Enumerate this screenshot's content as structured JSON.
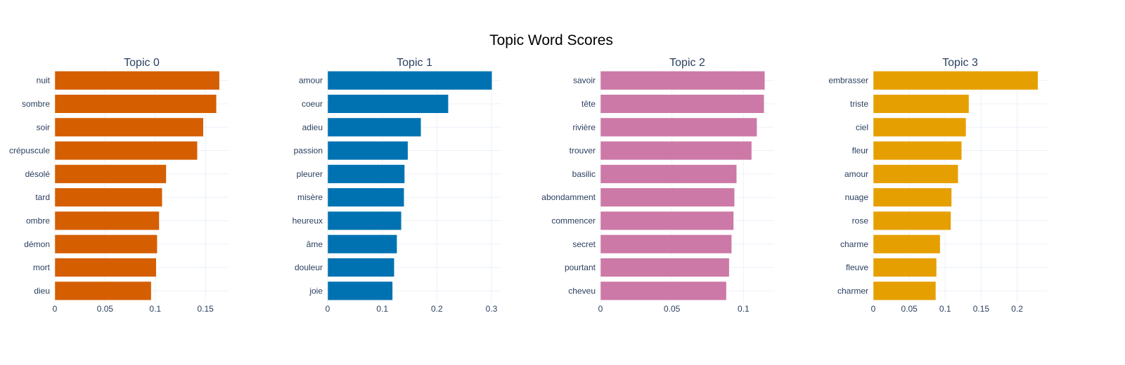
{
  "chart_data": {
    "type": "bar",
    "orientation": "horizontal",
    "title": "Topic Word Scores",
    "grid": true,
    "legend": "none",
    "panels": [
      {
        "title": "Topic 0",
        "color": "#D55E00",
        "categories": [
          "nuit",
          "sombre",
          "soir",
          "crépuscule",
          "désolé",
          "tard",
          "ombre",
          "démon",
          "mort",
          "dieu"
        ],
        "values": [
          0.164,
          0.161,
          0.148,
          0.142,
          0.111,
          0.107,
          0.104,
          0.102,
          0.101,
          0.096
        ],
        "xlim": [
          0,
          0.173
        ],
        "xticks": [
          0,
          0.05,
          0.1,
          0.15
        ],
        "xtick_labels": [
          "0",
          "0.05",
          "0.1",
          "0.15"
        ]
      },
      {
        "title": "Topic 1",
        "color": "#0072B2",
        "categories": [
          "amour",
          "coeur",
          "adieu",
          "passion",
          "pleurer",
          "misère",
          "heureux",
          "âme",
          "douleur",
          "joie"
        ],
        "values": [
          0.301,
          0.221,
          0.171,
          0.147,
          0.141,
          0.14,
          0.135,
          0.127,
          0.122,
          0.119
        ],
        "xlim": [
          0,
          0.318
        ],
        "xticks": [
          0,
          0.1,
          0.2,
          0.3
        ],
        "xtick_labels": [
          "0",
          "0.1",
          "0.2",
          "0.3"
        ]
      },
      {
        "title": "Topic 2",
        "color": "#CC79A7",
        "categories": [
          "savoir",
          "tête",
          "rivière",
          "trouver",
          "basilic",
          "abondamment",
          "commencer",
          "secret",
          "pourtant",
          "cheveu"
        ],
        "values": [
          0.115,
          0.1145,
          0.1095,
          0.1058,
          0.0953,
          0.0938,
          0.0932,
          0.0918,
          0.0901,
          0.0881
        ],
        "xlim": [
          0,
          0.1215
        ],
        "xticks": [
          0,
          0.05,
          0.1
        ],
        "xtick_labels": [
          "0",
          "0.05",
          "0.1"
        ]
      },
      {
        "title": "Topic 3",
        "color": "#E69F00",
        "categories": [
          "embrasser",
          "triste",
          "ciel",
          "fleur",
          "amour",
          "nuage",
          "rose",
          "charme",
          "fleuve",
          "charmer"
        ],
        "values": [
          0.229,
          0.133,
          0.129,
          0.123,
          0.118,
          0.109,
          0.108,
          0.093,
          0.088,
          0.087
        ],
        "xlim": [
          0,
          0.2415
        ],
        "xticks": [
          0,
          0.05,
          0.1,
          0.15,
          0.2
        ],
        "xtick_labels": [
          "0",
          "0.05",
          "0.1",
          "0.15",
          "0.2"
        ]
      }
    ]
  }
}
